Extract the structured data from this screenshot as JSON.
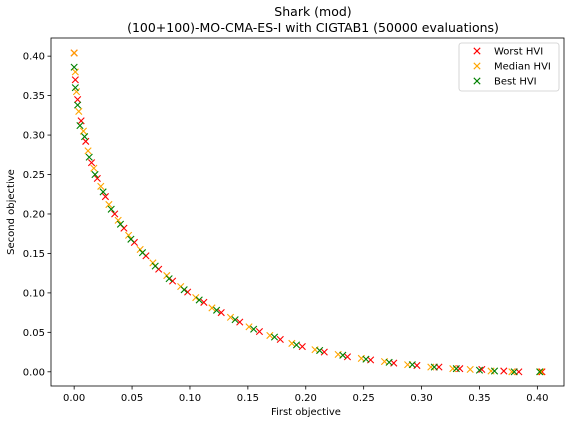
{
  "chart_data": {
    "type": "scatter",
    "title": "Shark (mod)",
    "subtitle": "(100+100)-MO-CMA-ES-I with CIGTAB1 (50000 evaluations)",
    "xlabel": "First objective",
    "ylabel": "Second objective",
    "xlim": [
      -0.02,
      0.423
    ],
    "ylim": [
      -0.018,
      0.423
    ],
    "xticks": [
      0.0,
      0.05,
      0.1,
      0.15,
      0.2,
      0.25,
      0.3,
      0.35,
      0.4
    ],
    "xtick_labels": [
      "0.00",
      "0.05",
      "0.10",
      "0.15",
      "0.20",
      "0.25",
      "0.30",
      "0.35",
      "0.40"
    ],
    "yticks": [
      0.0,
      0.05,
      0.1,
      0.15,
      0.2,
      0.25,
      0.3,
      0.35,
      0.4
    ],
    "ytick_labels": [
      "0.00",
      "0.05",
      "0.10",
      "0.15",
      "0.20",
      "0.25",
      "0.30",
      "0.35",
      "0.40"
    ],
    "grid": false,
    "legend_position": "top-right",
    "marker": "x",
    "series": [
      {
        "name": "Worst HVI",
        "color": "#ff0000",
        "points": [
          [
            0.0,
            0.404
          ],
          [
            0.001,
            0.37
          ],
          [
            0.003,
            0.345
          ],
          [
            0.006,
            0.318
          ],
          [
            0.01,
            0.292
          ],
          [
            0.015,
            0.265
          ],
          [
            0.02,
            0.245
          ],
          [
            0.027,
            0.222
          ],
          [
            0.035,
            0.2
          ],
          [
            0.043,
            0.182
          ],
          [
            0.052,
            0.164
          ],
          [
            0.062,
            0.147
          ],
          [
            0.073,
            0.13
          ],
          [
            0.085,
            0.115
          ],
          [
            0.098,
            0.101
          ],
          [
            0.112,
            0.088
          ],
          [
            0.127,
            0.075
          ],
          [
            0.143,
            0.063
          ],
          [
            0.16,
            0.051
          ],
          [
            0.178,
            0.041
          ],
          [
            0.197,
            0.032
          ],
          [
            0.216,
            0.025
          ],
          [
            0.236,
            0.019
          ],
          [
            0.256,
            0.015
          ],
          [
            0.276,
            0.011
          ],
          [
            0.296,
            0.008
          ],
          [
            0.315,
            0.006
          ],
          [
            0.333,
            0.004
          ],
          [
            0.352,
            0.003
          ],
          [
            0.371,
            0.001
          ],
          [
            0.384,
            0.0
          ],
          [
            0.404,
            0.0
          ]
        ]
      },
      {
        "name": "Median HVI",
        "color": "#ffa500",
        "points": [
          [
            0.0,
            0.404
          ],
          [
            0.001,
            0.38
          ],
          [
            0.002,
            0.355
          ],
          [
            0.004,
            0.33
          ],
          [
            0.008,
            0.305
          ],
          [
            0.012,
            0.28
          ],
          [
            0.017,
            0.258
          ],
          [
            0.023,
            0.235
          ],
          [
            0.03,
            0.212
          ],
          [
            0.038,
            0.192
          ],
          [
            0.047,
            0.173
          ],
          [
            0.057,
            0.155
          ],
          [
            0.068,
            0.138
          ],
          [
            0.08,
            0.122
          ],
          [
            0.092,
            0.108
          ],
          [
            0.105,
            0.094
          ],
          [
            0.119,
            0.081
          ],
          [
            0.135,
            0.069
          ],
          [
            0.151,
            0.057
          ],
          [
            0.169,
            0.046
          ],
          [
            0.188,
            0.036
          ],
          [
            0.208,
            0.028
          ],
          [
            0.228,
            0.022
          ],
          [
            0.248,
            0.017
          ],
          [
            0.268,
            0.013
          ],
          [
            0.288,
            0.009
          ],
          [
            0.308,
            0.006
          ],
          [
            0.327,
            0.004
          ],
          [
            0.342,
            0.003
          ],
          [
            0.36,
            0.001
          ],
          [
            0.378,
            0.0
          ],
          [
            0.403,
            0.0
          ]
        ]
      },
      {
        "name": "Best HVI",
        "color": "#008000",
        "points": [
          [
            0.0,
            0.386
          ],
          [
            0.001,
            0.36
          ],
          [
            0.003,
            0.338
          ],
          [
            0.005,
            0.312
          ],
          [
            0.009,
            0.298
          ],
          [
            0.013,
            0.272
          ],
          [
            0.018,
            0.25
          ],
          [
            0.025,
            0.228
          ],
          [
            0.032,
            0.206
          ],
          [
            0.04,
            0.187
          ],
          [
            0.049,
            0.168
          ],
          [
            0.059,
            0.151
          ],
          [
            0.07,
            0.134
          ],
          [
            0.082,
            0.118
          ],
          [
            0.095,
            0.104
          ],
          [
            0.108,
            0.091
          ],
          [
            0.123,
            0.078
          ],
          [
            0.139,
            0.066
          ],
          [
            0.155,
            0.054
          ],
          [
            0.173,
            0.044
          ],
          [
            0.192,
            0.034
          ],
          [
            0.212,
            0.027
          ],
          [
            0.232,
            0.021
          ],
          [
            0.252,
            0.016
          ],
          [
            0.272,
            0.012
          ],
          [
            0.292,
            0.009
          ],
          [
            0.311,
            0.006
          ],
          [
            0.33,
            0.004
          ],
          [
            0.35,
            0.002
          ],
          [
            0.363,
            0.001
          ],
          [
            0.38,
            0.0
          ],
          [
            0.402,
            0.0
          ]
        ]
      }
    ]
  }
}
